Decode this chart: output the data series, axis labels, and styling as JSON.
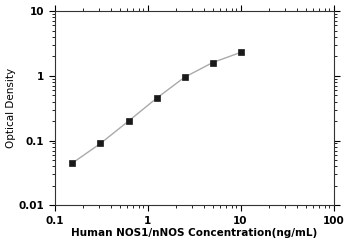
{
  "x": [
    0.156,
    0.312,
    0.625,
    1.25,
    2.5,
    5.0,
    10.0
  ],
  "y": [
    0.045,
    0.09,
    0.2,
    0.45,
    0.95,
    1.6,
    2.3
  ],
  "xlabel": "Human NOS1/nNOS Concentration(ng/mL)",
  "ylabel": "Optical Density",
  "xlim": [
    0.1,
    100
  ],
  "ylim": [
    0.01,
    10
  ],
  "marker": "s",
  "marker_color": "#1a1a1a",
  "line_color": "#aaaaaa",
  "marker_size": 4.5,
  "line_width": 1.0,
  "background_color": "#ffffff",
  "xlabel_fontsize": 7.5,
  "ylabel_fontsize": 7.5,
  "tick_fontsize": 7.5
}
